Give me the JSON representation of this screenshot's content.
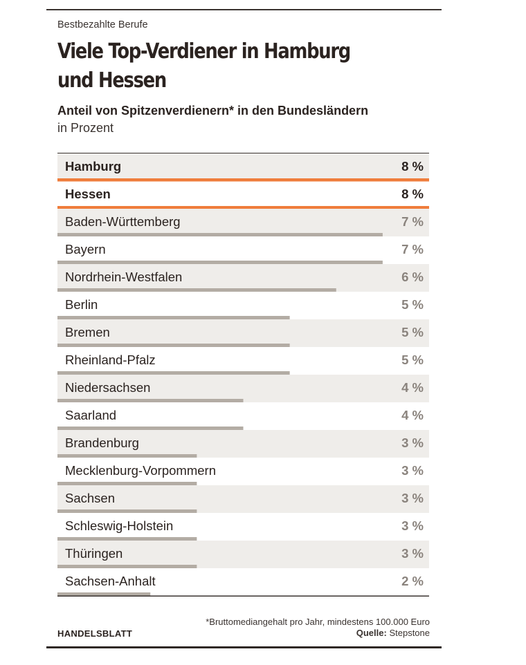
{
  "kicker": "Bestbezahlte Berufe",
  "headline": "Viele Top-Verdiener in Hamburg und Hessen",
  "subtitle": "Anteil von Spitzenverdienern* in den Bundesländern",
  "unit": "in Prozent",
  "footnote": "*Bruttomediangehalt pro Jahr, mindestens 100.000 Euro",
  "source_label": "Quelle:",
  "source_name": "Stepstone",
  "brand": "HANDELSBLATT",
  "colors": {
    "highlight": "#ef7d3c",
    "bar": "#b3aca4",
    "row_shade": "#efedea",
    "text": "#2b2320",
    "value_muted": "#8a837d"
  },
  "chart_data": {
    "type": "bar",
    "orientation": "horizontal",
    "unit_suffix": " %",
    "xlim": [
      0,
      8
    ],
    "categories": [
      "Hamburg",
      "Hessen",
      "Baden-Württemberg",
      "Bayern",
      "Nordrhein-Westfalen",
      "Berlin",
      "Bremen",
      "Rheinland-Pfalz",
      "Niedersachsen",
      "Saarland",
      "Brandenburg",
      "Mecklenburg-Vorpommern",
      "Sachsen",
      "Schleswig-Holstein",
      "Thüringen",
      "Sachsen-Anhalt"
    ],
    "values": [
      8,
      8,
      7,
      7,
      6,
      5,
      5,
      5,
      4,
      4,
      3,
      3,
      3,
      3,
      3,
      2
    ],
    "highlighted": [
      "Hamburg",
      "Hessen"
    ]
  }
}
